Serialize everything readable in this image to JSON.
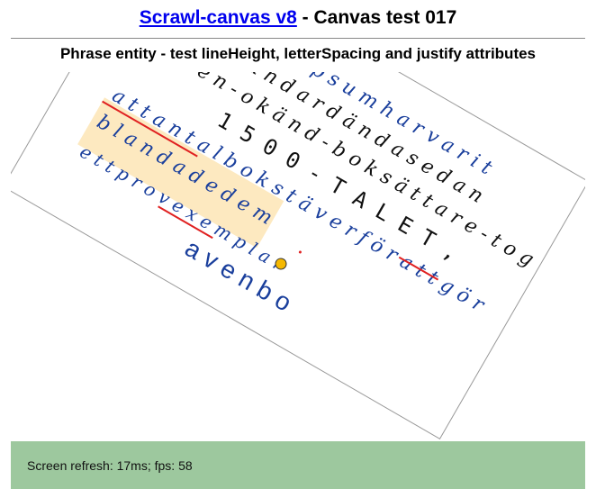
{
  "header": {
    "link_text": "Scrawl-canvas v8",
    "title_rest": " - Canvas test 017",
    "subtitle": "Phrase entity - test lineHeight, letterSpacing and justify attributes"
  },
  "canvas": {
    "lines": [
      "m   i p s u m   h a r   v a r i t",
      "s t a n d a r d   ä n d a   s e d a n",
      "n ä r - e n - o k ä n d - b o k s ä t t a r e - t o g",
      "1 5 0 0 - T A L E T ,",
      "a t t   a n t a l   b o k s t ä v e r   f ö r   a t t   g ö r",
      "b l a n d a d e   d e m",
      "e t t   p r o v e x e m p l a r",
      "a v   e n   b o"
    ]
  },
  "status": {
    "text": "Screen refresh: 17ms; fps: 58"
  },
  "colors": {
    "status_bg": "#9dc89e",
    "highlight": "#fde9c0",
    "text_black": "#111111",
    "text_blue": "#1a3f9c",
    "underline": "#e02020",
    "marker": "#f5b800"
  }
}
